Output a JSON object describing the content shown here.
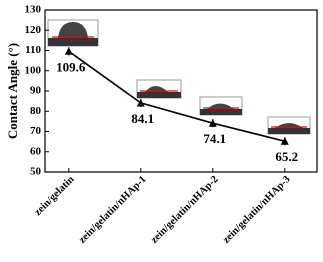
{
  "chart_data": {
    "type": "line",
    "y_label": "Contact Angle (°)",
    "categories": [
      "zein/gelatin",
      "zein/gelatin/nHAp-1",
      "zein/gelatin/nHAp-2",
      "zein/gelatin/nHAp-3"
    ],
    "values": [
      109.6,
      84.1,
      74.1,
      65.2
    ],
    "errors": [
      2,
      2,
      2,
      2
    ],
    "color": "#000000",
    "ylim": [
      50,
      130
    ],
    "yticks": [
      50,
      60,
      70,
      80,
      90,
      100,
      110,
      120,
      130
    ]
  }
}
